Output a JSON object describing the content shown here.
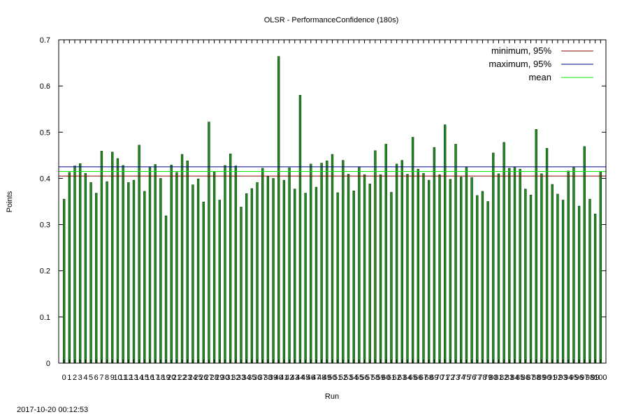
{
  "timestamp": "2017-10-20 00:12:53",
  "chart_data": {
    "type": "bar",
    "title": "OLSR - PerformanceConfidence (180s)",
    "xlabel": "Run",
    "ylabel": "Points",
    "ylim": [
      0,
      0.7
    ],
    "yticks": [
      "0",
      "0.1",
      "0.2",
      "0.3",
      "0.4",
      "0.5",
      "0.6",
      "0.7"
    ],
    "xlim": [
      -1,
      101
    ],
    "grid": false,
    "legend_position": "top-right",
    "bar_color": "#228b22",
    "bar_edge_color": "#0a3d0a",
    "categories": [
      "0",
      "1",
      "2",
      "3",
      "4",
      "5",
      "6",
      "7",
      "8",
      "9",
      "10",
      "11",
      "12",
      "13",
      "14",
      "15",
      "16",
      "17",
      "18",
      "19",
      "20",
      "21",
      "22",
      "23",
      "24",
      "25",
      "26",
      "27",
      "28",
      "29",
      "30",
      "31",
      "32",
      "33",
      "34",
      "35",
      "36",
      "37",
      "38",
      "39",
      "40",
      "41",
      "42",
      "43",
      "44",
      "45",
      "46",
      "47",
      "48",
      "49",
      "50",
      "51",
      "52",
      "53",
      "54",
      "55",
      "56",
      "57",
      "58",
      "59",
      "60",
      "61",
      "62",
      "63",
      "64",
      "65",
      "66",
      "67",
      "68",
      "69",
      "70",
      "71",
      "72",
      "73",
      "74",
      "75",
      "76",
      "77",
      "78",
      "79",
      "80",
      "81",
      "82",
      "83",
      "84",
      "85",
      "86",
      "87",
      "88",
      "89",
      "90",
      "91",
      "92",
      "93",
      "94",
      "95",
      "96",
      "97",
      "98",
      "99",
      "100"
    ],
    "values": [
      0.355,
      0.413,
      0.427,
      0.432,
      0.411,
      0.391,
      0.368,
      0.459,
      0.393,
      0.457,
      0.443,
      0.428,
      0.391,
      0.396,
      0.472,
      0.372,
      0.425,
      0.43,
      0.4,
      0.319,
      0.429,
      0.413,
      0.452,
      0.438,
      0.386,
      0.399,
      0.349,
      0.522,
      0.415,
      0.353,
      0.428,
      0.453,
      0.427,
      0.338,
      0.367,
      0.378,
      0.391,
      0.422,
      0.404,
      0.4,
      0.664,
      0.396,
      0.423,
      0.377,
      0.58,
      0.368,
      0.431,
      0.381,
      0.433,
      0.438,
      0.452,
      0.369,
      0.439,
      0.409,
      0.373,
      0.424,
      0.408,
      0.388,
      0.46,
      0.408,
      0.474,
      0.37,
      0.431,
      0.439,
      0.409,
      0.489,
      0.42,
      0.411,
      0.396,
      0.467,
      0.408,
      0.516,
      0.398,
      0.474,
      0.403,
      0.425,
      0.402,
      0.363,
      0.372,
      0.35,
      0.455,
      0.41,
      0.478,
      0.422,
      0.425,
      0.42,
      0.377,
      0.364,
      0.506,
      0.41,
      0.465,
      0.387,
      0.366,
      0.353,
      0.416,
      0.425,
      0.34,
      0.469,
      0.355,
      0.323,
      0.415
    ],
    "reference_lines": [
      {
        "name": "minimum, 95%",
        "value": 0.405,
        "color": "#8b0000"
      },
      {
        "name": "maximum, 95%",
        "value": 0.425,
        "color": "#00008b"
      },
      {
        "name": "mean",
        "value": 0.415,
        "color": "#00ee00"
      }
    ]
  }
}
